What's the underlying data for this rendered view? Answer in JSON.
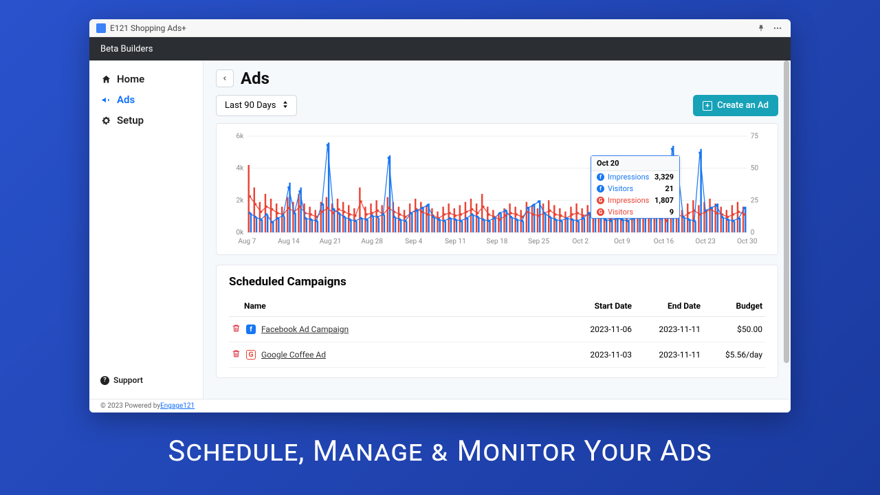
{
  "window": {
    "title": "E121 Shopping Ads+"
  },
  "topbar": {
    "org": "Beta Builders"
  },
  "sidebar": {
    "items": [
      {
        "label": "Home",
        "icon": "home",
        "active": false
      },
      {
        "label": "Ads",
        "icon": "megaphone",
        "active": true
      },
      {
        "label": "Setup",
        "icon": "gear",
        "active": false
      }
    ],
    "support_label": "Support"
  },
  "page": {
    "title": "Ads",
    "range_label": "Last 90 Days",
    "create_label": "Create an Ad"
  },
  "chart": {
    "left_axis": {
      "ticks": [
        "0k",
        "2k",
        "4k",
        "6k"
      ],
      "max": 6000
    },
    "right_axis": {
      "ticks": [
        "0",
        "25",
        "50",
        "75"
      ],
      "max": 75
    },
    "x_labels": [
      "Aug 7",
      "Aug 14",
      "Aug 21",
      "Aug 28",
      "Sep 4",
      "Sep 11",
      "Sep 18",
      "Sep 25",
      "Oct 2",
      "Oct 9",
      "Oct 16",
      "Oct 23",
      "Oct 30"
    ],
    "colors": {
      "fb": "#1877f2",
      "google": "#ea4335",
      "grid": "#eeeeee",
      "axis_text": "#888888"
    },
    "series": {
      "fb_impressions_bars": [
        1200,
        900,
        800,
        1100,
        700,
        900,
        1000,
        3100,
        1200,
        2800,
        900,
        800,
        700,
        1800,
        5600,
        1500,
        1200,
        900,
        800,
        700,
        900,
        800,
        1000,
        900,
        1100,
        4800,
        900,
        800,
        700,
        1200,
        1400,
        1600,
        1800,
        900,
        800,
        700,
        900,
        800,
        700,
        900,
        1100,
        900,
        800,
        700,
        900,
        1200,
        1400,
        900,
        800,
        700,
        1600,
        1800,
        2000,
        1200,
        900,
        800,
        700,
        900,
        800,
        700,
        900,
        1200,
        1400,
        900,
        800,
        700,
        900,
        800,
        700,
        900,
        1200,
        1400,
        1600,
        1800,
        900,
        3329,
        5400,
        4200,
        900,
        800,
        700,
        5200,
        1400,
        1600,
        1800,
        900,
        800,
        700,
        900,
        1600
      ],
      "google_impressions_bars": [
        4200,
        2800,
        1900,
        2400,
        2100,
        1800,
        1600,
        2200,
        1900,
        2400,
        1800,
        1600,
        1400,
        1900,
        2200,
        1800,
        2100,
        1900,
        1700,
        1500,
        2800,
        1600,
        1800,
        2000,
        1700,
        2200,
        1900,
        1600,
        1400,
        1800,
        2100,
        1900,
        1700,
        1500,
        1300,
        1600,
        1800,
        1500,
        1700,
        1900,
        2100,
        1800,
        2400,
        1600,
        1400,
        1200,
        1500,
        1800,
        1600,
        1400,
        1900,
        1700,
        1500,
        1800,
        2000,
        1700,
        1500,
        1300,
        1600,
        1800,
        1500,
        1700,
        1900,
        1600,
        1400,
        1200,
        1500,
        1800,
        1600,
        1400,
        1700,
        1900,
        2100,
        1800,
        1600,
        1807,
        1900,
        1600,
        1400,
        1800,
        2000,
        1700,
        1900,
        2100,
        1800,
        1600,
        1400,
        1700,
        1900,
        1600
      ],
      "fb_visitors_line": [
        15,
        12,
        10,
        14,
        8,
        11,
        13,
        35,
        15,
        32,
        11,
        10,
        9,
        22,
        68,
        18,
        15,
        12,
        10,
        9,
        11,
        10,
        13,
        12,
        14,
        58,
        12,
        10,
        9,
        15,
        17,
        19,
        21,
        12,
        10,
        9,
        11,
        10,
        9,
        11,
        14,
        12,
        10,
        9,
        11,
        15,
        17,
        12,
        10,
        9,
        19,
        21,
        24,
        15,
        12,
        10,
        9,
        11,
        10,
        9,
        11,
        15,
        17,
        12,
        10,
        9,
        11,
        10,
        9,
        11,
        15,
        17,
        19,
        21,
        11,
        21,
        65,
        50,
        12,
        10,
        9,
        62,
        17,
        19,
        21,
        12,
        10,
        9,
        11,
        19
      ],
      "google_visitors_line": [
        28,
        22,
        16,
        20,
        18,
        15,
        14,
        19,
        16,
        20,
        15,
        14,
        12,
        16,
        19,
        15,
        18,
        16,
        14,
        13,
        24,
        14,
        15,
        17,
        14,
        19,
        16,
        14,
        12,
        15,
        18,
        16,
        14,
        13,
        11,
        14,
        15,
        13,
        14,
        16,
        18,
        15,
        20,
        14,
        12,
        10,
        13,
        15,
        14,
        12,
        16,
        14,
        13,
        15,
        17,
        14,
        13,
        11,
        14,
        15,
        13,
        14,
        16,
        14,
        12,
        10,
        13,
        15,
        14,
        12,
        14,
        16,
        18,
        15,
        14,
        9,
        16,
        14,
        12,
        15,
        17,
        14,
        16,
        18,
        15,
        14,
        12,
        14,
        16,
        14
      ]
    },
    "tooltip": {
      "date": "Oct 20",
      "rows": [
        {
          "platform": "fb",
          "label": "Impressions",
          "value": "3,329"
        },
        {
          "platform": "fb",
          "label": "Visitors",
          "value": "21"
        },
        {
          "platform": "google",
          "label": "Impressions",
          "value": "1,807"
        },
        {
          "platform": "google",
          "label": "Visitors",
          "value": "9"
        }
      ]
    }
  },
  "campaigns": {
    "title": "Scheduled Campaigns",
    "columns": {
      "name": "Name",
      "start": "Start Date",
      "end": "End Date",
      "budget": "Budget"
    },
    "rows": [
      {
        "platform": "fb",
        "name": "Facebook Ad Campaign",
        "start": "2023-11-06",
        "end": "2023-11-11",
        "budget": "$50.00"
      },
      {
        "platform": "google",
        "name": "Google Coffee Ad",
        "start": "2023-11-03",
        "end": "2023-11-11",
        "budget": "$5.56/day"
      }
    ]
  },
  "footer": {
    "copyright": "© 2023 Powered by ",
    "link": "Engage121"
  },
  "tagline": "Schedule, Manage & Monitor Your Ads"
}
